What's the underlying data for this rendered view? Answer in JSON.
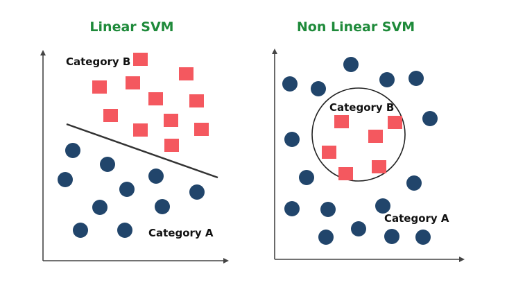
{
  "colors": {
    "title": "#1e8a3a",
    "category_a_point": "#21456b",
    "category_b_point": "#f4585f",
    "axis": "#444444",
    "boundary": "#333333",
    "text": "#111111"
  },
  "panels": [
    {
      "title": "Linear SVM",
      "boundary": "straight line",
      "category_a_label": "Category A",
      "category_b_label": "Category B"
    },
    {
      "title": "Non Linear SVM",
      "boundary": "circle",
      "category_a_label": "Category A",
      "category_b_label": "Category B"
    }
  ]
}
